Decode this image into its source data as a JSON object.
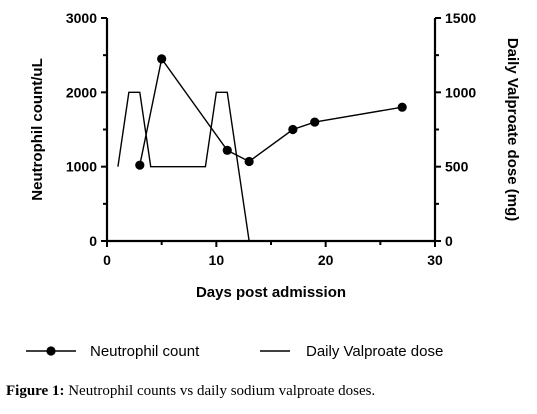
{
  "chart_data": {
    "type": "line",
    "xlabel": "Days post admission",
    "ylabel": "Neutrophil count/uL",
    "y2label": "Daily Valproate dose (mg)",
    "xlim": [
      0,
      30
    ],
    "ylim": [
      0,
      3000
    ],
    "y2lim": [
      0,
      1500
    ],
    "xticks": [
      "0",
      "10",
      "20",
      "30"
    ],
    "yticks": [
      "0",
      "1000",
      "2000",
      "3000"
    ],
    "y2ticks": [
      "0",
      "500",
      "1000",
      "1500"
    ],
    "grid": false,
    "legend_position": "bottom",
    "series": [
      {
        "name": "Neutrophil count",
        "axis": "left",
        "marker": "circle",
        "color": "#000000",
        "x": [
          3,
          5,
          11,
          13,
          17,
          19,
          27
        ],
        "y": [
          1020,
          2450,
          1220,
          1070,
          1500,
          1600,
          1800
        ]
      },
      {
        "name": "Daily Valproate dose",
        "axis": "right",
        "marker": "none",
        "color": "#000000",
        "x": [
          1,
          2,
          3,
          4,
          5,
          6,
          7,
          8,
          9,
          10,
          11,
          12,
          13
        ],
        "y": [
          500,
          1000,
          1000,
          500,
          500,
          500,
          500,
          500,
          500,
          1000,
          1000,
          500,
          0
        ]
      }
    ]
  },
  "caption": {
    "label": "Figure 1:",
    "text": " Neutrophil counts vs daily sodium valproate doses."
  }
}
